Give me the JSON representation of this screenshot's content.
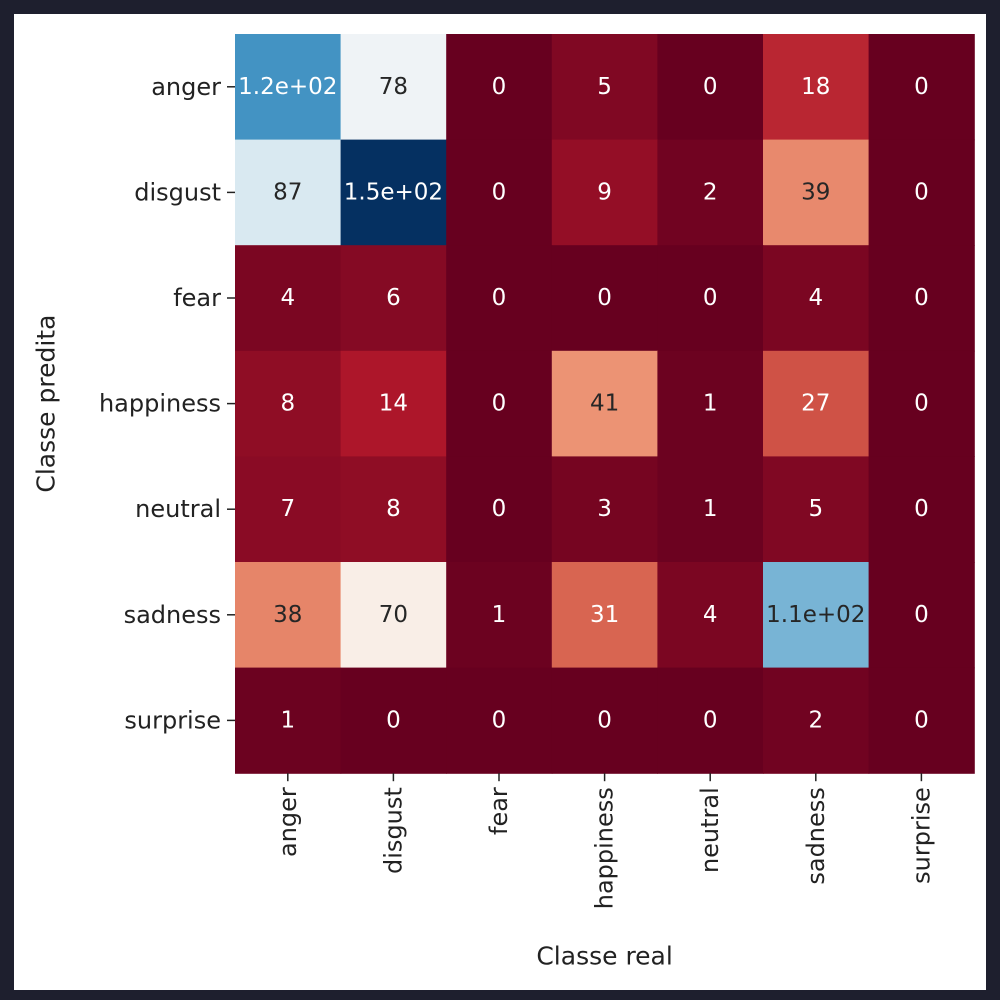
{
  "chart_data": {
    "type": "heatmap",
    "title": "",
    "xlabel": "Classe real",
    "ylabel": "Classe predita",
    "x_categories": [
      "anger",
      "disgust",
      "fear",
      "happiness",
      "neutral",
      "sadness",
      "surprise"
    ],
    "y_categories": [
      "anger",
      "disgust",
      "fear",
      "happiness",
      "neutral",
      "sadness",
      "surprise"
    ],
    "values": [
      [
        120,
        78,
        0,
        5,
        0,
        18,
        0
      ],
      [
        87,
        150,
        0,
        9,
        2,
        39,
        0
      ],
      [
        4,
        6,
        0,
        0,
        0,
        4,
        0
      ],
      [
        8,
        14,
        0,
        41,
        1,
        27,
        0
      ],
      [
        7,
        8,
        0,
        3,
        1,
        5,
        0
      ],
      [
        38,
        70,
        1,
        31,
        4,
        110,
        0
      ],
      [
        1,
        0,
        0,
        0,
        0,
        2,
        0
      ]
    ],
    "annotations": [
      [
        "1.2e+02",
        "78",
        "0",
        "5",
        "0",
        "18",
        "0"
      ],
      [
        "87",
        "1.5e+02",
        "0",
        "9",
        "2",
        "39",
        "0"
      ],
      [
        "4",
        "6",
        "0",
        "0",
        "0",
        "4",
        "0"
      ],
      [
        "8",
        "14",
        "0",
        "41",
        "1",
        "27",
        "0"
      ],
      [
        "7",
        "8",
        "0",
        "3",
        "1",
        "5",
        "0"
      ],
      [
        "38",
        "70",
        "1",
        "31",
        "4",
        "1.1e+02",
        "0"
      ],
      [
        "1",
        "0",
        "0",
        "0",
        "0",
        "2",
        "0"
      ]
    ],
    "colormap": "RdBu",
    "colorbar": false,
    "grid": false
  }
}
